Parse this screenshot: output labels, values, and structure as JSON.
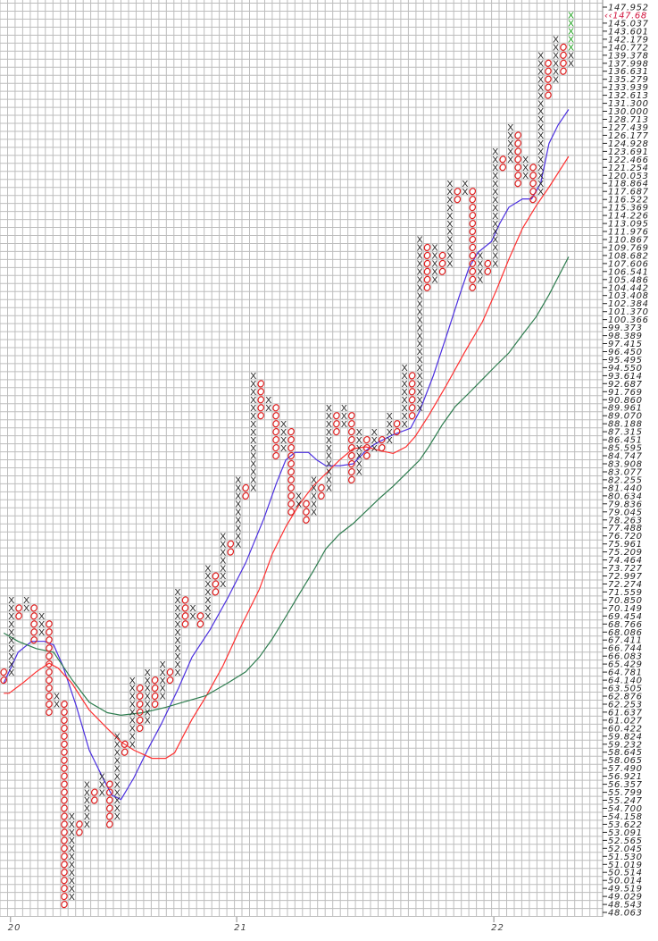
{
  "chart_data": {
    "type": "point-and-figure",
    "title": "",
    "scale": "log",
    "box_size_percent": 1,
    "grid": true,
    "ylim": [
      48.063,
      147.952
    ],
    "current_price": 147.68,
    "current_price_label": "‹‹147.68",
    "price_labels": [
      "147.952",
      "145.037",
      "143.601",
      "142.179",
      "140.772",
      "139.378",
      "137.998",
      "136.631",
      "135.279",
      "133.939",
      "132.613",
      "131.300",
      "130.000",
      "128.713",
      "127.439",
      "126.177",
      "124.928",
      "123.691",
      "122.466",
      "121.254",
      "120.053",
      "118.864",
      "117.687",
      "116.522",
      "115.369",
      "114.226",
      "113.095",
      "111.976",
      "110.867",
      "109.769",
      "108.682",
      "107.606",
      "106.541",
      "105.486",
      "104.442",
      "103.408",
      "102.384",
      "101.370",
      "100.366",
      "99.373",
      "98.389",
      "97.415",
      "96.450",
      "95.495",
      "94.550",
      "93.614",
      "92.687",
      "91.769",
      "90.860",
      "89.961",
      "89.070",
      "88.188",
      "87.315",
      "86.451",
      "85.595",
      "84.747",
      "83.908",
      "83.077",
      "82.255",
      "81.440",
      "80.634",
      "79.836",
      "79.045",
      "78.263",
      "77.488",
      "76.720",
      "75.961",
      "75.209",
      "74.464",
      "73.727",
      "72.997",
      "72.274",
      "71.559",
      "70.850",
      "70.149",
      "69.454",
      "68.766",
      "68.086",
      "67.411",
      "66.744",
      "66.083",
      "65.429",
      "64.781",
      "64.140",
      "63.505",
      "62.876",
      "62.253",
      "61.637",
      "61.027",
      "60.422",
      "59.824",
      "59.232",
      "58.645",
      "58.065",
      "57.490",
      "56.921",
      "56.357",
      "55.799",
      "55.247",
      "54.700",
      "54.158",
      "53.622",
      "53.091",
      "52.565",
      "52.045",
      "51.530",
      "51.019",
      "50.514",
      "50.014",
      "49.519",
      "49.029",
      "48.543",
      "48.063"
    ],
    "x_labels": [
      {
        "label": "20",
        "col": 0.9
      },
      {
        "label": "21",
        "col": 30.8
      },
      {
        "label": "22",
        "col": 64.8
      }
    ],
    "colors": {
      "x": "#222222",
      "o": "#e02020",
      "recent_x": "#1aa01a",
      "ma_fast": "#4b2fe0",
      "ma_mid": "#ff3030",
      "ma_slow": "#2e7d4f",
      "grid": "#bdbdbd",
      "current": "#d0103a"
    },
    "columns": [
      {
        "t": "O",
        "hi": 64.781,
        "lo": 64.14
      },
      {
        "t": "X",
        "hi": 70.85,
        "lo": 64.781
      },
      {
        "t": "O",
        "hi": 70.149,
        "lo": 69.454
      },
      {
        "t": "X",
        "hi": 70.85,
        "lo": 70.149
      },
      {
        "t": "O",
        "hi": 70.149,
        "lo": 67.411
      },
      {
        "t": "X",
        "hi": 69.454,
        "lo": 68.086
      },
      {
        "t": "O",
        "hi": 68.766,
        "lo": 61.637
      },
      {
        "t": "X",
        "hi": 62.876,
        "lo": 62.253
      },
      {
        "t": "O",
        "hi": 62.253,
        "lo": 48.543
      },
      {
        "t": "X",
        "hi": 54.158,
        "lo": 49.029
      },
      {
        "t": "O",
        "hi": 53.622,
        "lo": 53.091
      },
      {
        "t": "X",
        "hi": 56.357,
        "lo": 53.622
      },
      {
        "t": "O",
        "hi": 55.799,
        "lo": 55.247
      },
      {
        "t": "X",
        "hi": 56.921,
        "lo": 55.799
      },
      {
        "t": "O",
        "hi": 56.357,
        "lo": 53.622
      },
      {
        "t": "X",
        "hi": 59.824,
        "lo": 54.158
      },
      {
        "t": "O",
        "hi": 59.232,
        "lo": 58.645
      },
      {
        "t": "X",
        "hi": 64.14,
        "lo": 59.232
      },
      {
        "t": "O",
        "hi": 63.505,
        "lo": 60.422
      },
      {
        "t": "X",
        "hi": 64.781,
        "lo": 61.027
      },
      {
        "t": "O",
        "hi": 64.14,
        "lo": 62.253
      },
      {
        "t": "X",
        "hi": 65.429,
        "lo": 62.876
      },
      {
        "t": "O",
        "hi": 64.781,
        "lo": 64.14
      },
      {
        "t": "X",
        "hi": 71.559,
        "lo": 64.781
      },
      {
        "t": "O",
        "hi": 70.85,
        "lo": 68.766
      },
      {
        "t": "X",
        "hi": 70.149,
        "lo": 69.454
      },
      {
        "t": "O",
        "hi": 69.454,
        "lo": 68.766
      },
      {
        "t": "X",
        "hi": 73.727,
        "lo": 69.454
      },
      {
        "t": "O",
        "hi": 72.997,
        "lo": 71.559
      },
      {
        "t": "X",
        "hi": 76.72,
        "lo": 72.274
      },
      {
        "t": "O",
        "hi": 75.961,
        "lo": 75.209
      },
      {
        "t": "X",
        "hi": 82.255,
        "lo": 75.961
      },
      {
        "t": "O",
        "hi": 81.44,
        "lo": 80.634
      },
      {
        "t": "X",
        "hi": 93.614,
        "lo": 81.44
      },
      {
        "t": "O",
        "hi": 92.687,
        "lo": 89.07
      },
      {
        "t": "X",
        "hi": 90.86,
        "lo": 89.961
      },
      {
        "t": "O",
        "hi": 89.961,
        "lo": 84.747
      },
      {
        "t": "X",
        "hi": 88.188,
        "lo": 85.595
      },
      {
        "t": "O",
        "hi": 87.315,
        "lo": 79.045
      },
      {
        "t": "X",
        "hi": 80.634,
        "lo": 79.836
      },
      {
        "t": "O",
        "hi": 79.836,
        "lo": 78.263
      },
      {
        "t": "X",
        "hi": 82.255,
        "lo": 79.045
      },
      {
        "t": "O",
        "hi": 81.44,
        "lo": 80.634
      },
      {
        "t": "X",
        "hi": 89.961,
        "lo": 81.44
      },
      {
        "t": "O",
        "hi": 89.07,
        "lo": 87.315
      },
      {
        "t": "X",
        "hi": 89.961,
        "lo": 88.188
      },
      {
        "t": "O",
        "hi": 89.07,
        "lo": 82.255
      },
      {
        "t": "X",
        "hi": 87.315,
        "lo": 83.077
      },
      {
        "t": "O",
        "hi": 86.451,
        "lo": 84.747
      },
      {
        "t": "X",
        "hi": 87.315,
        "lo": 85.595
      },
      {
        "t": "O",
        "hi": 86.451,
        "lo": 85.595
      },
      {
        "t": "X",
        "hi": 89.07,
        "lo": 86.451
      },
      {
        "t": "O",
        "hi": 88.188,
        "lo": 87.315
      },
      {
        "t": "X",
        "hi": 94.55,
        "lo": 88.188
      },
      {
        "t": "O",
        "hi": 93.614,
        "lo": 89.07
      },
      {
        "t": "X",
        "hi": 110.867,
        "lo": 89.961
      },
      {
        "t": "O",
        "hi": 109.769,
        "lo": 104.442
      },
      {
        "t": "X",
        "hi": 109.769,
        "lo": 105.486
      },
      {
        "t": "O",
        "hi": 108.682,
        "lo": 106.541
      },
      {
        "t": "X",
        "hi": 118.864,
        "lo": 107.606
      },
      {
        "t": "O",
        "hi": 117.687,
        "lo": 116.522
      },
      {
        "t": "X",
        "hi": 118.864,
        "lo": 117.687
      },
      {
        "t": "O",
        "hi": 117.687,
        "lo": 104.442
      },
      {
        "t": "X",
        "hi": 108.682,
        "lo": 105.486
      },
      {
        "t": "O",
        "hi": 107.606,
        "lo": 106.541
      },
      {
        "t": "X",
        "hi": 123.691,
        "lo": 107.606
      },
      {
        "t": "O",
        "hi": 122.466,
        "lo": 121.254
      },
      {
        "t": "X",
        "hi": 127.439,
        "lo": 122.466
      },
      {
        "t": "O",
        "hi": 126.177,
        "lo": 118.864
      },
      {
        "t": "X",
        "hi": 122.466,
        "lo": 120.053
      },
      {
        "t": "O",
        "hi": 121.254,
        "lo": 116.522
      },
      {
        "t": "X",
        "hi": 139.378,
        "lo": 117.687
      },
      {
        "t": "O",
        "hi": 137.998,
        "lo": 132.613
      },
      {
        "t": "X",
        "hi": 142.179,
        "lo": 135.279
      },
      {
        "t": "O",
        "hi": 140.772,
        "lo": 136.631
      },
      {
        "t": "X",
        "hi": 146.487,
        "lo": 137.998,
        "recent_from": 140.772
      }
    ],
    "series": [
      {
        "key": "ma_fast",
        "points": [
          [
            0,
            63.9
          ],
          [
            1.9,
            66.4
          ],
          [
            3.7,
            67.3
          ],
          [
            5.4,
            67.3
          ],
          [
            6.6,
            67.0
          ],
          [
            7.8,
            65.3
          ],
          [
            9.6,
            62.1
          ],
          [
            11.3,
            58.8
          ],
          [
            13.1,
            56.8
          ],
          [
            14.3,
            55.6
          ],
          [
            15.5,
            55.3
          ],
          [
            17.2,
            56.8
          ],
          [
            19.0,
            58.8
          ],
          [
            20.8,
            60.7
          ],
          [
            23.1,
            63.5
          ],
          [
            24.9,
            66.0
          ],
          [
            27.3,
            68.3
          ],
          [
            29.6,
            71.0
          ],
          [
            32.0,
            74.2
          ],
          [
            34.4,
            78.4
          ],
          [
            36.1,
            82.0
          ],
          [
            37.3,
            84.3
          ],
          [
            38.5,
            85.1
          ],
          [
            40.3,
            85.1
          ],
          [
            41.4,
            84.3
          ],
          [
            42.6,
            83.7
          ],
          [
            44.4,
            83.7
          ],
          [
            46.2,
            83.9
          ],
          [
            47.9,
            85.3
          ],
          [
            49.1,
            86.0
          ],
          [
            51.5,
            87.0
          ],
          [
            53.8,
            87.7
          ],
          [
            55.0,
            89.6
          ],
          [
            56.8,
            93.6
          ],
          [
            58.6,
            98.5
          ],
          [
            60.3,
            103.5
          ],
          [
            61.5,
            107.0
          ],
          [
            62.7,
            109.1
          ],
          [
            64.5,
            110.6
          ],
          [
            65.6,
            113.1
          ],
          [
            66.8,
            115.4
          ],
          [
            68.6,
            116.6
          ],
          [
            69.8,
            116.6
          ],
          [
            71.0,
            118.9
          ],
          [
            72.1,
            124.9
          ],
          [
            73.3,
            127.8
          ],
          [
            74.7,
            130.3
          ]
        ]
      },
      {
        "key": "ma_mid",
        "points": [
          [
            0,
            63.1
          ],
          [
            0.7,
            63.1
          ],
          [
            2.5,
            63.9
          ],
          [
            4.3,
            64.8
          ],
          [
            6.0,
            65.5
          ],
          [
            7.2,
            65.1
          ],
          [
            9.0,
            63.9
          ],
          [
            11.3,
            61.8
          ],
          [
            13.7,
            60.4
          ],
          [
            15.5,
            59.4
          ],
          [
            17.2,
            58.8
          ],
          [
            19.6,
            58.2
          ],
          [
            21.4,
            58.2
          ],
          [
            22.6,
            58.6
          ],
          [
            23.7,
            59.8
          ],
          [
            24.9,
            61.1
          ],
          [
            26.7,
            62.8
          ],
          [
            29.0,
            65.3
          ],
          [
            31.4,
            68.6
          ],
          [
            33.8,
            71.8
          ],
          [
            35.5,
            75.0
          ],
          [
            37.3,
            77.6
          ],
          [
            39.1,
            79.8
          ],
          [
            40.9,
            81.6
          ],
          [
            42.6,
            82.9
          ],
          [
            44.4,
            84.3
          ],
          [
            46.2,
            85.5
          ],
          [
            47.9,
            85.7
          ],
          [
            49.7,
            85.3
          ],
          [
            51.5,
            85.0
          ],
          [
            53.2,
            85.7
          ],
          [
            54.4,
            86.8
          ],
          [
            56.2,
            89.1
          ],
          [
            58.6,
            92.6
          ],
          [
            60.9,
            96.3
          ],
          [
            63.3,
            100.1
          ],
          [
            65.1,
            104.0
          ],
          [
            66.8,
            108.2
          ],
          [
            68.6,
            112.4
          ],
          [
            70.4,
            115.6
          ],
          [
            72.1,
            118.3
          ],
          [
            74.7,
            122.9
          ]
        ]
      },
      {
        "key": "ma_slow",
        "points": [
          [
            0,
            68.0
          ],
          [
            1.9,
            67.3
          ],
          [
            4.3,
            66.7
          ],
          [
            6.6,
            66.4
          ],
          [
            9.0,
            64.2
          ],
          [
            11.3,
            62.4
          ],
          [
            13.7,
            61.6
          ],
          [
            15.5,
            61.4
          ],
          [
            18.4,
            61.6
          ],
          [
            21.4,
            62.0
          ],
          [
            23.7,
            62.4
          ],
          [
            26.7,
            62.9
          ],
          [
            29.6,
            63.9
          ],
          [
            32.0,
            64.8
          ],
          [
            33.8,
            66.0
          ],
          [
            35.5,
            67.5
          ],
          [
            37.3,
            69.4
          ],
          [
            39.1,
            71.4
          ],
          [
            40.9,
            73.4
          ],
          [
            42.6,
            75.5
          ],
          [
            44.4,
            76.9
          ],
          [
            46.2,
            77.9
          ],
          [
            47.9,
            79.1
          ],
          [
            49.7,
            80.4
          ],
          [
            51.5,
            81.6
          ],
          [
            53.2,
            82.9
          ],
          [
            55.0,
            84.3
          ],
          [
            56.2,
            85.7
          ],
          [
            58.0,
            88.1
          ],
          [
            59.7,
            90.1
          ],
          [
            61.5,
            91.6
          ],
          [
            63.3,
            93.2
          ],
          [
            65.1,
            94.8
          ],
          [
            66.8,
            96.3
          ],
          [
            68.6,
            98.5
          ],
          [
            70.4,
            100.7
          ],
          [
            72.1,
            103.5
          ],
          [
            74.7,
            108.5
          ]
        ]
      }
    ]
  }
}
